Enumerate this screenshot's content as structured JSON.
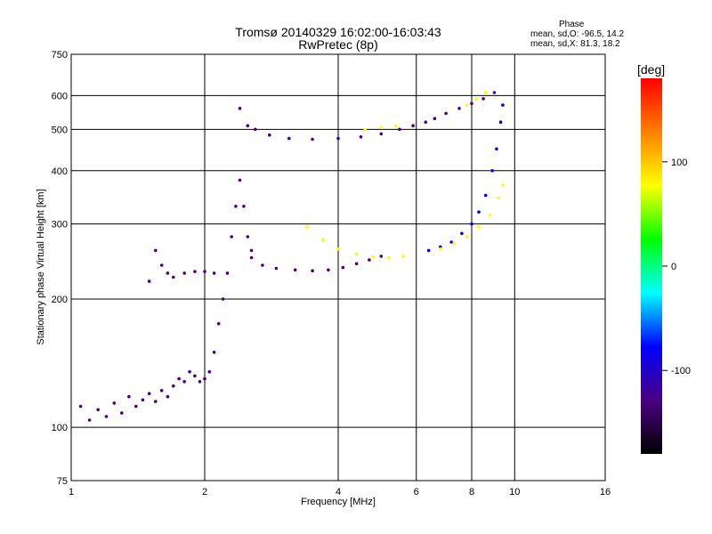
{
  "header": {
    "title": "Tromsø 20140329 16:02:00-16:03:43",
    "subtitle": "RwPretec (8p)",
    "stats_title": "Phase",
    "stats_o": "mean, sd,O: -96.5, 14.2",
    "stats_x": "mean, sd,X: 81.3, 18.2"
  },
  "colorbar": {
    "unit": "[deg]",
    "ticks": [
      "100",
      "0",
      "-100"
    ],
    "tick_values": [
      100,
      0,
      -100
    ],
    "range": [
      -180,
      180
    ],
    "colors": [
      "#000000",
      "#4b0082",
      "#0000ff",
      "#00ffff",
      "#00ff00",
      "#ffff00",
      "#ff8000",
      "#ff0000"
    ]
  },
  "chart_data": {
    "type": "scatter",
    "title": "Tromsø 20140329 16:02:00-16:03:43",
    "subtitle": "RwPretec (8p)",
    "xlabel": "Frequency [MHz]",
    "ylabel": "Stationary phase Virtual Height [km]",
    "x_scale": "log",
    "y_scale": "log",
    "xlim": [
      1,
      16
    ],
    "ylim": [
      75,
      750
    ],
    "x_ticks": [
      1,
      2,
      4,
      6,
      8,
      10,
      16
    ],
    "x_tick_labels": [
      "1",
      "2",
      "4",
      "6",
      "8",
      "10",
      "16"
    ],
    "y_ticks": [
      75,
      100,
      200,
      300,
      400,
      500,
      600,
      750
    ],
    "y_tick_labels": [
      "75",
      "100",
      "200",
      "300",
      "400",
      "500",
      "600",
      "750"
    ],
    "grid": true,
    "color_variable": "Phase [deg]",
    "series": [
      {
        "phase": -110,
        "points": [
          [
            1.05,
            112
          ],
          [
            1.1,
            104
          ],
          [
            1.15,
            110
          ],
          [
            1.2,
            106
          ],
          [
            1.25,
            114
          ],
          [
            1.3,
            108
          ],
          [
            1.35,
            118
          ],
          [
            1.4,
            112
          ],
          [
            1.45,
            116
          ],
          [
            1.5,
            120
          ],
          [
            1.55,
            115
          ],
          [
            1.6,
            122
          ],
          [
            1.65,
            118
          ],
          [
            1.7,
            125
          ],
          [
            1.75,
            130
          ],
          [
            1.8,
            128
          ],
          [
            1.85,
            135
          ],
          [
            1.9,
            132
          ],
          [
            1.95,
            128
          ],
          [
            2.0,
            130
          ],
          [
            2.05,
            135
          ],
          [
            2.1,
            150
          ],
          [
            2.15,
            175
          ],
          [
            2.2,
            200
          ],
          [
            2.25,
            230
          ],
          [
            2.3,
            280
          ],
          [
            2.35,
            330
          ],
          [
            2.4,
            380
          ],
          [
            2.45,
            330
          ],
          [
            2.5,
            280
          ],
          [
            2.55,
            260
          ]
        ]
      },
      {
        "phase": -105,
        "points": [
          [
            1.5,
            220
          ],
          [
            1.55,
            260
          ],
          [
            1.6,
            240
          ],
          [
            1.65,
            230
          ],
          [
            1.7,
            225
          ],
          [
            1.8,
            230
          ],
          [
            1.9,
            232
          ],
          [
            2.0,
            232
          ],
          [
            2.1,
            230
          ]
        ]
      },
      {
        "phase": -110,
        "points": [
          [
            2.55,
            250
          ],
          [
            2.7,
            240
          ],
          [
            2.9,
            236
          ],
          [
            3.2,
            234
          ],
          [
            3.5,
            233
          ],
          [
            3.8,
            234
          ],
          [
            4.1,
            237
          ],
          [
            4.4,
            242
          ],
          [
            4.7,
            247
          ],
          [
            5.0,
            252
          ]
        ]
      },
      {
        "phase": -100,
        "points": [
          [
            6.4,
            260
          ],
          [
            6.8,
            265
          ],
          [
            7.2,
            272
          ],
          [
            7.6,
            285
          ],
          [
            8.0,
            300
          ],
          [
            8.3,
            320
          ],
          [
            8.6,
            350
          ],
          [
            8.9,
            400
          ],
          [
            9.1,
            450
          ],
          [
            9.3,
            520
          ],
          [
            9.4,
            570
          ]
        ]
      },
      {
        "phase": 85,
        "points": [
          [
            3.4,
            295
          ],
          [
            3.7,
            275
          ],
          [
            4.0,
            262
          ],
          [
            4.4,
            255
          ],
          [
            4.8,
            251
          ],
          [
            5.2,
            250
          ],
          [
            5.6,
            252
          ]
        ]
      },
      {
        "phase": 80,
        "points": [
          [
            6.8,
            262
          ],
          [
            7.3,
            270
          ],
          [
            7.8,
            280
          ],
          [
            8.3,
            295
          ],
          [
            8.8,
            315
          ],
          [
            9.2,
            345
          ],
          [
            9.4,
            370
          ]
        ]
      },
      {
        "phase": -110,
        "points": [
          [
            2.4,
            560
          ],
          [
            2.5,
            510
          ],
          [
            2.6,
            500
          ],
          [
            2.8,
            485
          ],
          [
            3.1,
            476
          ],
          [
            3.5,
            474
          ],
          [
            4.0,
            476
          ],
          [
            4.5,
            480
          ],
          [
            5.0,
            488
          ],
          [
            5.5,
            500
          ],
          [
            5.9,
            510
          ]
        ]
      },
      {
        "phase": -110,
        "points": [
          [
            6.3,
            520
          ],
          [
            6.6,
            530
          ],
          [
            7.0,
            545
          ],
          [
            7.5,
            560
          ],
          [
            8.0,
            575
          ],
          [
            8.5,
            590
          ],
          [
            9.0,
            610
          ]
        ]
      },
      {
        "phase": 95,
        "points": [
          [
            4.6,
            500
          ],
          [
            5.0,
            505
          ],
          [
            5.4,
            510
          ],
          [
            7.8,
            570
          ],
          [
            8.2,
            590
          ],
          [
            8.6,
            610
          ]
        ]
      }
    ]
  }
}
